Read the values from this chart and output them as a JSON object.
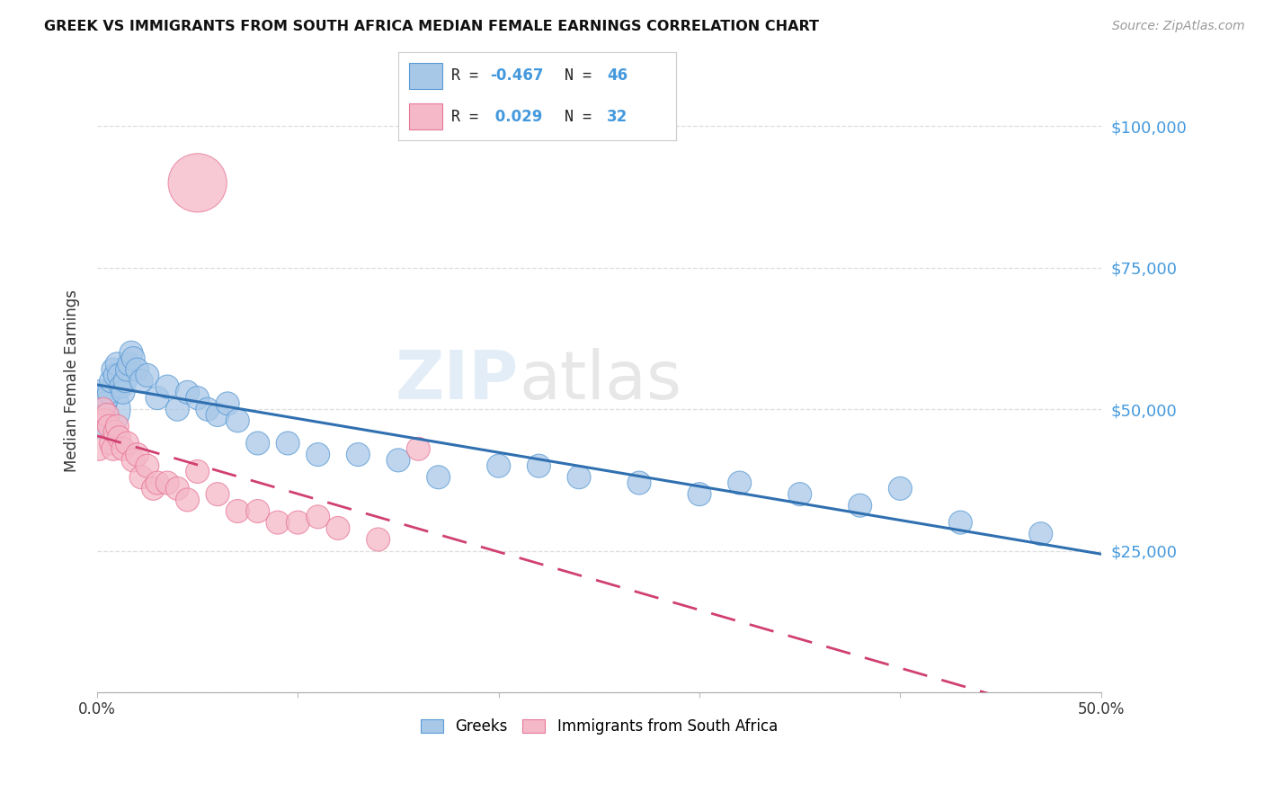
{
  "title": "GREEK VS IMMIGRANTS FROM SOUTH AFRICA MEDIAN FEMALE EARNINGS CORRELATION CHART",
  "source_text": "Source: ZipAtlas.com",
  "ylabel": "Median Female Earnings",
  "watermark": "ZIPatlas",
  "xlim": [
    0.0,
    0.5
  ],
  "ylim": [
    0,
    110000
  ],
  "yticks": [
    0,
    25000,
    50000,
    75000,
    100000
  ],
  "ytick_labels_right": [
    "",
    "$25,000",
    "$50,000",
    "$75,000",
    "$100,000"
  ],
  "xticks": [
    0.0,
    0.1,
    0.2,
    0.3,
    0.4,
    0.5
  ],
  "xtick_labels": [
    "0.0%",
    "",
    "",
    "",
    "",
    "50.0%"
  ],
  "blue_color": "#a8c8e8",
  "blue_edge_color": "#5b9bd5",
  "pink_color": "#f4b8c8",
  "pink_edge_color": "#e87898",
  "trendline_blue": "#3070b0",
  "trendline_pink": "#d04070",
  "background_color": "#ffffff",
  "grid_color": "#dddddd",
  "right_tick_color": "#4499dd",
  "legend_label1": "Greeks",
  "legend_label2": "Immigrants from South Africa",
  "blue_points_x": [
    0.002,
    0.003,
    0.004,
    0.005,
    0.006,
    0.007,
    0.008,
    0.009,
    0.01,
    0.011,
    0.012,
    0.013,
    0.014,
    0.015,
    0.016,
    0.017,
    0.018,
    0.02,
    0.022,
    0.025,
    0.03,
    0.035,
    0.04,
    0.045,
    0.05,
    0.055,
    0.06,
    0.065,
    0.07,
    0.08,
    0.095,
    0.11,
    0.13,
    0.15,
    0.17,
    0.2,
    0.22,
    0.24,
    0.27,
    0.3,
    0.32,
    0.35,
    0.38,
    0.4,
    0.43,
    0.47
  ],
  "blue_points_y": [
    50000,
    49000,
    51000,
    52000,
    53000,
    55000,
    57000,
    56000,
    58000,
    56000,
    54000,
    53000,
    55000,
    57000,
    58000,
    60000,
    59000,
    57000,
    55000,
    56000,
    52000,
    54000,
    50000,
    53000,
    52000,
    50000,
    49000,
    51000,
    48000,
    44000,
    44000,
    42000,
    42000,
    41000,
    38000,
    40000,
    40000,
    38000,
    37000,
    35000,
    37000,
    35000,
    33000,
    36000,
    30000,
    28000
  ],
  "pink_points_x": [
    0.001,
    0.003,
    0.004,
    0.005,
    0.006,
    0.007,
    0.008,
    0.009,
    0.01,
    0.011,
    0.013,
    0.015,
    0.018,
    0.02,
    0.022,
    0.025,
    0.028,
    0.03,
    0.035,
    0.04,
    0.045,
    0.05,
    0.06,
    0.07,
    0.08,
    0.09,
    0.1,
    0.11,
    0.12,
    0.14,
    0.05,
    0.16
  ],
  "pink_points_y": [
    43000,
    50000,
    48000,
    49000,
    47000,
    44000,
    43000,
    46000,
    47000,
    45000,
    43000,
    44000,
    41000,
    42000,
    38000,
    40000,
    36000,
    37000,
    37000,
    36000,
    34000,
    39000,
    35000,
    32000,
    32000,
    30000,
    30000,
    31000,
    29000,
    27000,
    90000,
    43000
  ],
  "pink_large_idx": 30,
  "pink_large_size": 2200,
  "blue_large_idx": 0,
  "blue_large_size": 2200,
  "point_size": 350
}
